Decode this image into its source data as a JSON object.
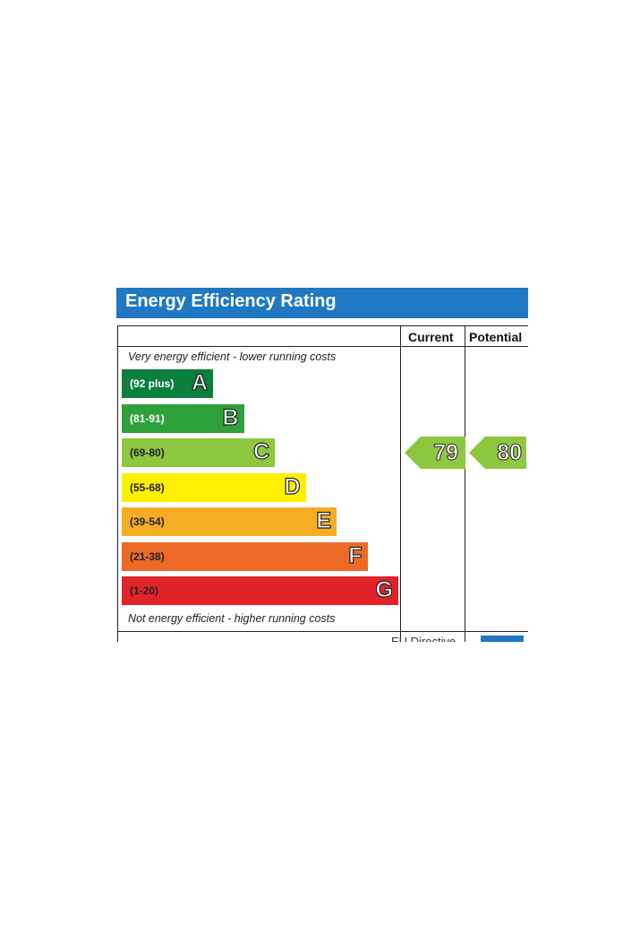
{
  "title": "Energy Efficiency Rating",
  "columns": {
    "current": "Current",
    "potential": "Potential"
  },
  "top_note": "Very energy efficient - lower running costs",
  "bottom_note": "Not energy efficient - higher running costs",
  "footer_partial": "EU Directive",
  "chart_data": {
    "type": "bar",
    "title": "Energy Efficiency Rating",
    "categories": [
      "A",
      "B",
      "C",
      "D",
      "E",
      "F",
      "G"
    ],
    "bands": [
      {
        "letter": "A",
        "range": "(92 plus)",
        "color": "#0b7f3d",
        "text_dark": false
      },
      {
        "letter": "B",
        "range": "(81-91)",
        "color": "#2ea03a",
        "text_dark": false
      },
      {
        "letter": "C",
        "range": "(69-80)",
        "color": "#8dc63f",
        "text_dark": true
      },
      {
        "letter": "D",
        "range": "(55-68)",
        "color": "#ffef00",
        "text_dark": true
      },
      {
        "letter": "E",
        "range": "(39-54)",
        "color": "#f6ad24",
        "text_dark": true
      },
      {
        "letter": "F",
        "range": "(21-38)",
        "color": "#ec6a26",
        "text_dark": true
      },
      {
        "letter": "G",
        "range": "(1-20)",
        "color": "#e3232a",
        "text_dark": true
      }
    ],
    "current": {
      "value": 79,
      "band": "C",
      "color": "#8dc63f"
    },
    "potential": {
      "value": 80,
      "band": "C",
      "color": "#8dc63f"
    }
  }
}
